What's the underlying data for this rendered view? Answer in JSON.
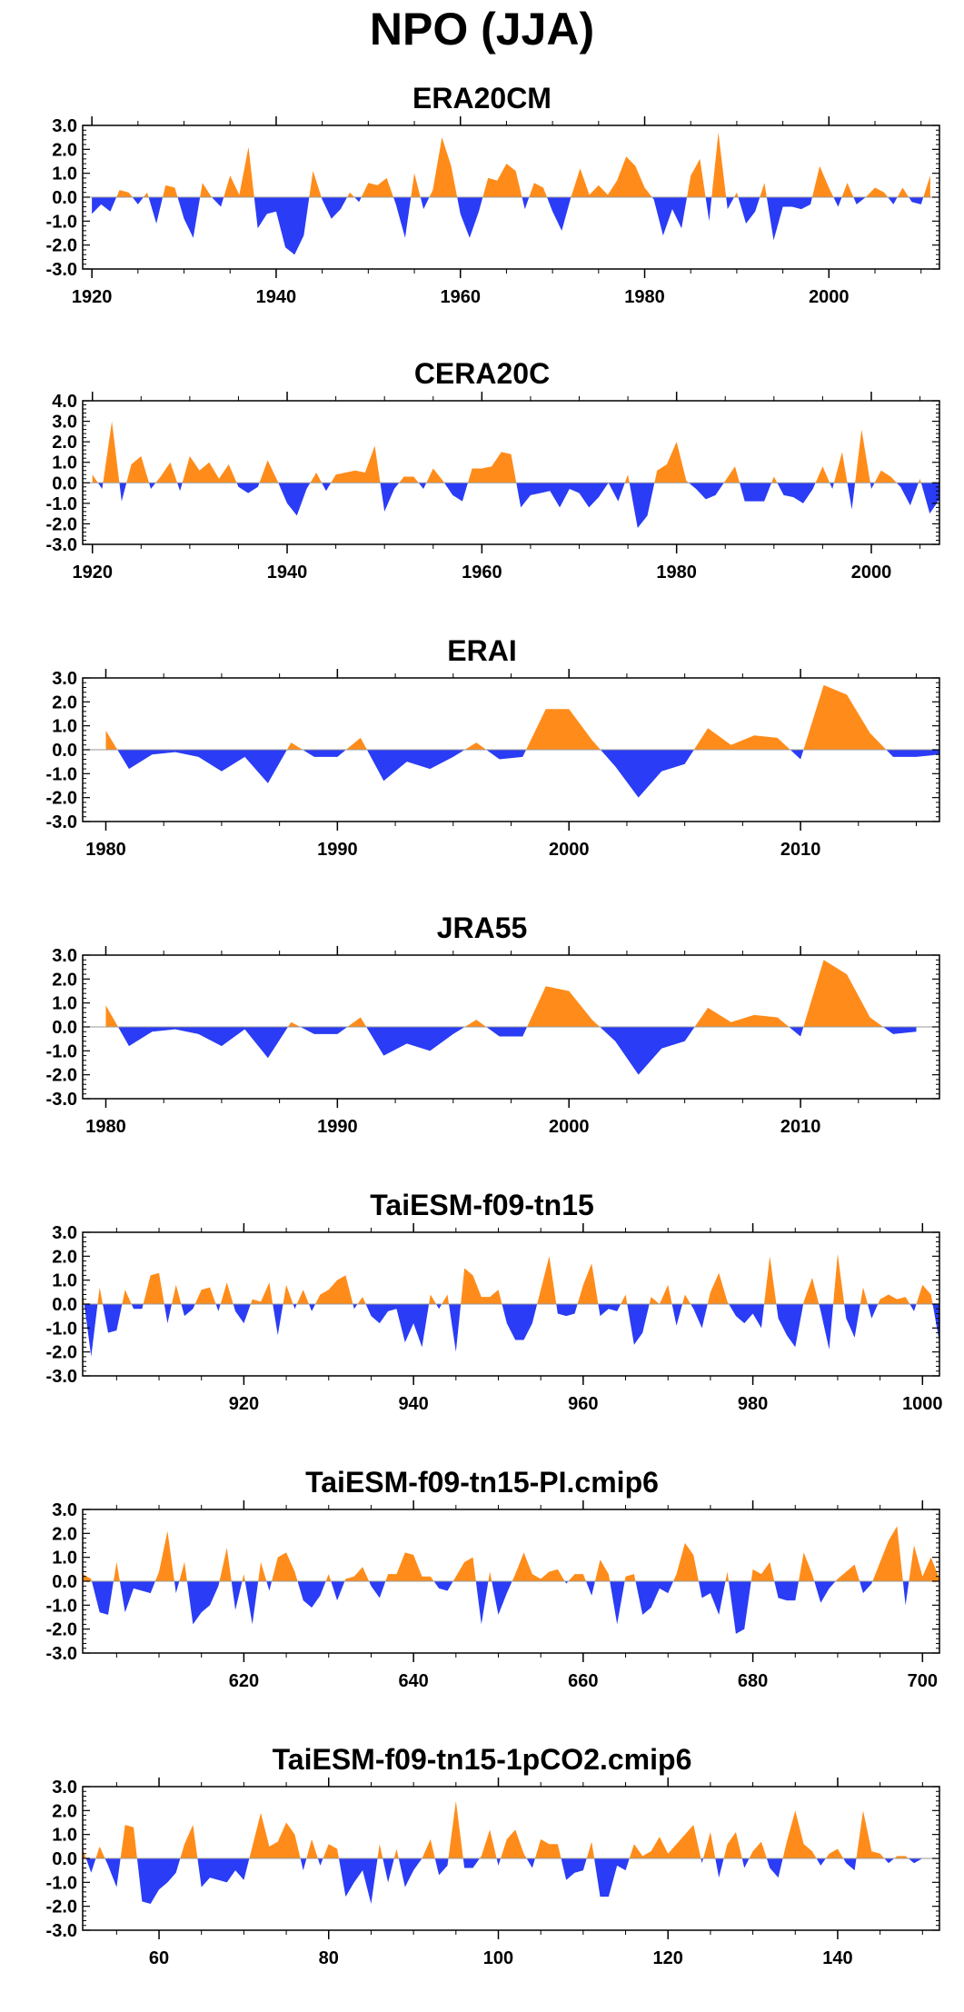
{
  "title": "NPO (JJA)",
  "colors": {
    "positive": "#ff8c1a",
    "negative": "#2a3cf5",
    "axis": "#000000",
    "zero_line": "#999999"
  },
  "chart_data": [
    {
      "type": "area",
      "title": "ERA20CM",
      "xlim": [
        1919,
        2012
      ],
      "ylim": [
        -3.0,
        3.0
      ],
      "x_ticks": [
        1920,
        1940,
        1960,
        1980,
        2000
      ],
      "y_ticks": [
        "3.0",
        "2.0",
        "1.0",
        "0.0",
        "-1.0",
        "-2.0",
        "-3.0"
      ],
      "x_start": 1920,
      "values": [
        -0.7,
        -0.3,
        -0.6,
        0.3,
        0.2,
        -0.3,
        0.2,
        -1.1,
        0.5,
        0.4,
        -0.9,
        -1.7,
        0.6,
        0.0,
        -0.4,
        0.9,
        0.1,
        2.1,
        -1.3,
        -0.7,
        -0.6,
        -2.1,
        -2.4,
        -1.6,
        1.1,
        -0.1,
        -0.9,
        -0.5,
        0.2,
        -0.2,
        0.6,
        0.5,
        0.8,
        -0.3,
        -1.7,
        1.0,
        -0.5,
        0.3,
        2.5,
        1.3,
        -0.7,
        -1.7,
        -0.6,
        0.8,
        0.7,
        1.4,
        1.1,
        -0.5,
        0.6,
        0.4,
        -0.6,
        -1.4,
        0.0,
        1.2,
        0.1,
        0.5,
        0.1,
        0.7,
        1.7,
        1.3,
        0.4,
        -0.1,
        -1.6,
        -0.5,
        -1.3,
        0.9,
        1.6,
        -1.0,
        2.7,
        -0.5,
        0.2,
        -1.1,
        -0.6,
        0.6,
        -1.8,
        -0.4,
        -0.4,
        -0.5,
        -0.3,
        1.3,
        0.4,
        -0.4,
        0.6,
        -0.3,
        0.0,
        0.4,
        0.2,
        -0.3,
        0.4,
        -0.2,
        -0.3,
        0.9
      ]
    },
    {
      "type": "area",
      "title": "CERA20C",
      "xlim": [
        1919,
        2007
      ],
      "ylim": [
        -3.0,
        4.0
      ],
      "x_ticks": [
        1920,
        1940,
        1960,
        1980,
        2000
      ],
      "y_ticks": [
        "4.0",
        "3.0",
        "2.0",
        "1.0",
        "0.0",
        "-1.0",
        "-2.0",
        "-3.0"
      ],
      "x_start": 1920,
      "values": [
        0.4,
        -0.3,
        3.0,
        -0.9,
        0.9,
        1.3,
        -0.3,
        0.3,
        1.0,
        -0.4,
        1.3,
        0.6,
        1.0,
        0.2,
        0.9,
        -0.2,
        -0.5,
        -0.2,
        1.1,
        0.1,
        -1.0,
        -1.6,
        -0.3,
        0.5,
        -0.4,
        0.4,
        0.5,
        0.6,
        0.5,
        1.8,
        -1.4,
        -0.3,
        0.3,
        0.3,
        -0.3,
        0.7,
        0.1,
        -0.6,
        -0.9,
        0.7,
        0.7,
        0.8,
        1.5,
        1.4,
        -1.2,
        -0.6,
        -0.5,
        -0.4,
        -1.2,
        -0.3,
        -0.5,
        -1.2,
        -0.7,
        0.0,
        -0.9,
        0.4,
        -2.2,
        -1.6,
        0.6,
        0.9,
        2.0,
        0.1,
        -0.3,
        -0.8,
        -0.6,
        0.1,
        0.8,
        -0.9,
        -0.9,
        -0.9,
        0.3,
        -0.6,
        -0.7,
        -1.0,
        -0.3,
        0.8,
        -0.3,
        1.5,
        -1.3,
        2.6,
        -0.3,
        0.6,
        0.3,
        -0.2,
        -1.1,
        0.2,
        -1.5,
        -0.8
      ]
    },
    {
      "type": "area",
      "title": "ERAI",
      "xlim": [
        1979,
        2016
      ],
      "ylim": [
        -3.0,
        3.0
      ],
      "x_ticks": [
        1980,
        1990,
        2000,
        2010
      ],
      "y_ticks": [
        "3.0",
        "2.0",
        "1.0",
        "0.0",
        "-1.0",
        "-2.0",
        "-3.0"
      ],
      "x_start": 1980,
      "values": [
        0.8,
        -0.8,
        -0.2,
        -0.1,
        -0.3,
        -0.9,
        -0.3,
        -1.4,
        0.3,
        -0.3,
        -0.3,
        0.5,
        -1.3,
        -0.5,
        -0.8,
        -0.3,
        0.3,
        -0.4,
        -0.3,
        1.7,
        1.7,
        0.4,
        -0.7,
        -2.0,
        -0.9,
        -0.6,
        0.9,
        0.2,
        0.6,
        0.5,
        -0.4,
        2.7,
        2.3,
        0.7,
        -0.3,
        -0.3,
        -0.2
      ]
    },
    {
      "type": "area",
      "title": "JRA55",
      "xlim": [
        1979,
        2016
      ],
      "ylim": [
        -3.0,
        3.0
      ],
      "x_ticks": [
        1980,
        1990,
        2000,
        2010
      ],
      "y_ticks": [
        "3.0",
        "2.0",
        "1.0",
        "0.0",
        "-1.0",
        "-2.0",
        "-3.0"
      ],
      "x_start": 1980,
      "values": [
        0.9,
        -0.8,
        -0.2,
        -0.1,
        -0.3,
        -0.8,
        -0.1,
        -1.3,
        0.2,
        -0.3,
        -0.3,
        0.4,
        -1.2,
        -0.7,
        -1.0,
        -0.3,
        0.3,
        -0.4,
        -0.4,
        1.7,
        1.5,
        0.3,
        -0.6,
        -2.0,
        -0.9,
        -0.6,
        0.8,
        0.2,
        0.5,
        0.4,
        -0.4,
        2.8,
        2.2,
        0.4,
        -0.3,
        -0.2
      ]
    },
    {
      "type": "area",
      "title": "TaiESM-f09-tn15",
      "xlim": [
        901,
        1002
      ],
      "ylim": [
        -3.0,
        3.0
      ],
      "x_ticks": [
        920,
        940,
        960,
        980,
        1000
      ],
      "y_ticks": [
        "3.0",
        "2.0",
        "1.0",
        "0.0",
        "-1.0",
        "-2.0",
        "-3.0"
      ],
      "x_start": 901,
      "values": [
        0.5,
        -2.2,
        0.7,
        -1.2,
        -1.1,
        0.6,
        -0.2,
        -0.2,
        1.2,
        1.3,
        -0.8,
        0.8,
        -0.5,
        -0.2,
        0.6,
        0.7,
        -0.3,
        0.9,
        -0.3,
        -0.8,
        0.2,
        0.1,
        0.9,
        -1.3,
        0.8,
        -0.2,
        0.6,
        -0.3,
        0.4,
        0.6,
        1.0,
        1.2,
        -0.2,
        0.3,
        -0.5,
        -0.8,
        -0.3,
        -0.2,
        -1.6,
        -0.8,
        -1.8,
        0.4,
        -0.2,
        0.4,
        -2.0,
        1.5,
        1.2,
        0.3,
        0.3,
        0.6,
        -0.8,
        -1.5,
        -1.5,
        -0.8,
        0.6,
        2.0,
        -0.4,
        -0.5,
        -0.4,
        0.8,
        1.7,
        -0.5,
        -0.2,
        -0.3,
        0.4,
        -1.7,
        -1.2,
        0.3,
        0.0,
        0.8,
        -0.9,
        0.4,
        -0.2,
        -1.0,
        0.5,
        1.3,
        0.1,
        -0.5,
        -0.8,
        -0.4,
        -1.0,
        2.0,
        -0.6,
        -1.3,
        -1.8,
        0.1,
        1.1,
        -0.3,
        -1.9,
        2.1,
        -0.6,
        -1.4,
        0.7,
        -0.6,
        0.2,
        0.4,
        0.2,
        0.3,
        -0.3,
        0.8,
        0.4,
        -1.6,
        -1.0
      ]
    },
    {
      "type": "area",
      "title": "TaiESM-f09-tn15-PI.cmip6",
      "xlim": [
        601,
        702
      ],
      "ylim": [
        -3.0,
        3.0
      ],
      "x_ticks": [
        620,
        640,
        660,
        680,
        700
      ],
      "y_ticks": [
        "3.0",
        "2.0",
        "1.0",
        "0.0",
        "-1.0",
        "-2.0",
        "-3.0"
      ],
      "x_start": 601,
      "values": [
        0.3,
        0.1,
        -1.3,
        -1.4,
        0.8,
        -1.3,
        -0.3,
        -0.4,
        -0.5,
        0.4,
        2.1,
        -0.5,
        0.8,
        -1.8,
        -1.3,
        -1.0,
        -0.2,
        1.4,
        -1.2,
        0.3,
        -1.8,
        0.8,
        -0.4,
        1.0,
        1.2,
        0.4,
        -0.8,
        -1.1,
        -0.6,
        0.3,
        -0.8,
        0.1,
        0.2,
        0.6,
        -0.2,
        -0.7,
        0.3,
        0.3,
        1.2,
        1.1,
        0.2,
        0.2,
        -0.3,
        -0.4,
        0.2,
        0.8,
        1.0,
        -1.8,
        0.4,
        -1.4,
        -0.5,
        0.3,
        1.2,
        0.3,
        0.1,
        0.4,
        0.5,
        -0.1,
        0.3,
        0.3,
        -0.6,
        0.9,
        0.3,
        -1.8,
        0.2,
        0.3,
        -1.4,
        -1.1,
        -0.3,
        -0.5,
        0.3,
        1.6,
        1.1,
        -0.7,
        -0.5,
        -1.4,
        0.4,
        -2.2,
        -2.0,
        0.5,
        0.3,
        0.8,
        -0.7,
        -0.8,
        -0.8,
        1.2,
        0.3,
        -0.9,
        -0.3,
        0.1,
        0.4,
        0.7,
        -0.5,
        -0.1,
        0.8,
        1.7,
        2.3,
        -1.0,
        1.5,
        0.2,
        1.0,
        0.1,
        -0.6
      ]
    },
    {
      "type": "area",
      "title": "TaiESM-f09-tn15-1pCO2.cmip6",
      "xlim": [
        51,
        152
      ],
      "ylim": [
        -3.0,
        3.0
      ],
      "x_ticks": [
        60,
        80,
        100,
        120,
        140
      ],
      "y_ticks": [
        "3.0",
        "2.0",
        "1.0",
        "0.0",
        "-1.0",
        "-2.0",
        "-3.0"
      ],
      "x_start": 51,
      "values": [
        0.4,
        -0.6,
        0.5,
        -0.3,
        -1.2,
        1.4,
        1.3,
        -1.8,
        -1.9,
        -1.3,
        -1.0,
        -0.6,
        0.6,
        1.4,
        -1.2,
        -0.8,
        -0.9,
        -1.0,
        -0.5,
        -0.9,
        0.5,
        1.9,
        0.5,
        0.7,
        1.5,
        1.0,
        -0.5,
        0.8,
        -0.3,
        0.6,
        0.4,
        -1.6,
        -1.0,
        -0.5,
        -1.9,
        0.6,
        -1.0,
        0.4,
        -1.2,
        -0.5,
        0.0,
        0.8,
        -0.7,
        -0.3,
        2.4,
        -0.4,
        -0.4,
        0.1,
        1.2,
        -0.3,
        0.8,
        1.2,
        0.2,
        -0.4,
        0.8,
        0.6,
        0.6,
        -0.9,
        -0.6,
        -0.5,
        0.7,
        -1.6,
        -1.6,
        -0.3,
        -0.5,
        0.6,
        0.1,
        0.3,
        0.9,
        0.2,
        0.6,
        1.0,
        1.4,
        -0.2,
        1.1,
        -0.8,
        0.6,
        1.1,
        -0.4,
        0.3,
        0.7,
        -0.4,
        -0.8,
        0.7,
        2.0,
        0.6,
        0.3,
        -0.3,
        0.2,
        0.4,
        -0.2,
        -0.5,
        2.0,
        0.3,
        0.2,
        -0.2,
        0.1,
        0.1,
        -0.2,
        0.0,
        0.0
      ]
    }
  ]
}
